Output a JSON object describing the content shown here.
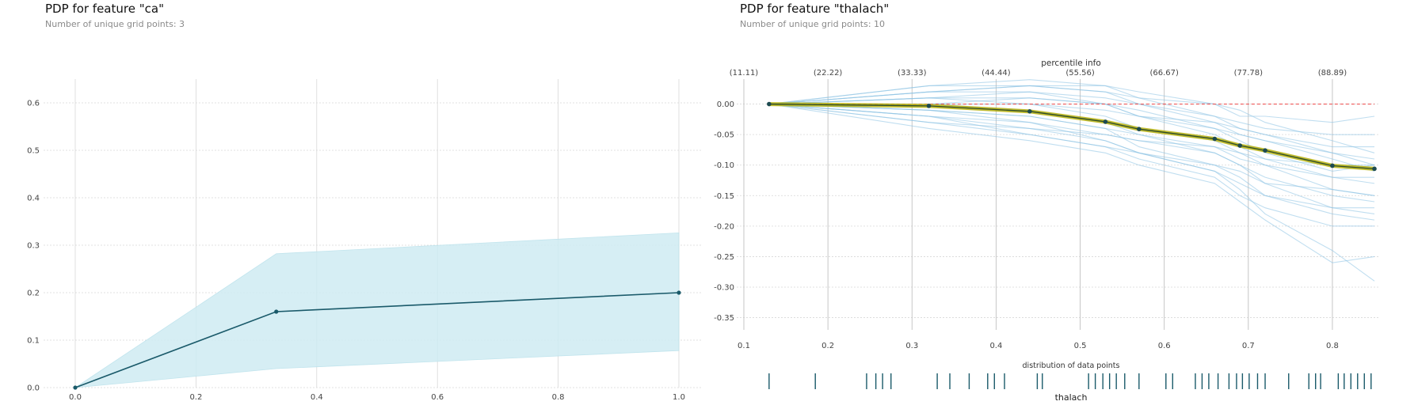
{
  "panels": {
    "left": {
      "title": "PDP for feature \"ca\"",
      "subtitle": "Number of unique grid points: 3"
    },
    "right": {
      "title": "PDP for feature \"thalach\"",
      "subtitle": "Number of unique grid points: 10"
    }
  },
  "colors": {
    "pdp_line": "#1a5a6a",
    "ci_band": "#cfecf3",
    "ice_lines": "#8cc3e3",
    "pdp_highlight": "#b5b00c",
    "baseline": "#ee4444",
    "rug": "#1a5a6a",
    "grid": "#d8d8d8"
  },
  "chart_data": [
    {
      "type": "line",
      "title": "PDP for feature \"ca\"",
      "subtitle": "Number of unique grid points: 3",
      "x": [
        0.0,
        0.333,
        1.0
      ],
      "series": [
        {
          "role": "pdp",
          "values": [
            0.0,
            0.16,
            0.2
          ]
        },
        {
          "role": "band_upper",
          "values": [
            0.0,
            0.282,
            0.326
          ]
        },
        {
          "role": "band_lower",
          "values": [
            0.0,
            0.04,
            0.078
          ]
        }
      ],
      "xlim": [
        0.0,
        1.0
      ],
      "ylim": [
        0.0,
        0.65
      ],
      "xticks": [
        "0.0",
        "0.2",
        "0.4",
        "0.6",
        "0.8",
        "1.0"
      ],
      "yticks": [
        "0.0",
        "0.1",
        "0.2",
        "0.3",
        "0.4",
        "0.5",
        "0.6"
      ],
      "grid": true
    },
    {
      "type": "line",
      "title": "PDP for feature \"thalach\"",
      "subtitle": "Number of unique grid points: 10",
      "xlabel": "thalach",
      "top_axis_label": "percentile info",
      "percentile_ticks": [
        "(11.11)",
        "(22.22)",
        "(33.33)",
        "(44.44)",
        "(55.56)",
        "(66.67)",
        "(77.78)",
        "(88.89)"
      ],
      "percentile_x": [
        0.1,
        0.2,
        0.3,
        0.4,
        0.5,
        0.6,
        0.7,
        0.8
      ],
      "x": [
        0.13,
        0.32,
        0.44,
        0.53,
        0.57,
        0.66,
        0.69,
        0.72,
        0.8,
        0.85
      ],
      "series": [
        {
          "role": "pdp",
          "values": [
            0.0,
            -0.003,
            -0.012,
            -0.029,
            -0.041,
            -0.057,
            -0.068,
            -0.076,
            -0.101,
            -0.106
          ]
        }
      ],
      "ice_lines": [
        [
          0.0,
          0.02,
          0.03,
          0.02,
          0.01,
          -0.02,
          -0.04,
          -0.05,
          -0.08,
          -0.1
        ],
        [
          0.0,
          0.03,
          0.04,
          0.03,
          0.01,
          0.0,
          -0.01,
          -0.03,
          -0.06,
          -0.08
        ],
        [
          0.0,
          0.01,
          0.02,
          0.01,
          0.0,
          -0.03,
          -0.05,
          -0.06,
          -0.09,
          -0.11
        ],
        [
          0.0,
          -0.01,
          -0.02,
          -0.04,
          -0.05,
          -0.07,
          -0.09,
          -0.1,
          -0.12,
          -0.13
        ],
        [
          0.0,
          -0.02,
          -0.03,
          -0.05,
          -0.06,
          -0.08,
          -0.1,
          -0.12,
          -0.15,
          -0.16
        ],
        [
          0.0,
          0.0,
          0.0,
          -0.01,
          -0.02,
          -0.03,
          -0.04,
          -0.05,
          -0.07,
          -0.07
        ],
        [
          0.0,
          -0.03,
          -0.05,
          -0.07,
          -0.09,
          -0.12,
          -0.15,
          -0.17,
          -0.2,
          -0.2
        ],
        [
          0.0,
          0.01,
          0.0,
          -0.02,
          -0.04,
          -0.06,
          -0.08,
          -0.1,
          -0.14,
          -0.15
        ],
        [
          0.0,
          -0.04,
          -0.06,
          -0.08,
          -0.1,
          -0.13,
          -0.16,
          -0.19,
          -0.26,
          -0.25
        ],
        [
          0.0,
          0.02,
          0.02,
          0.0,
          -0.02,
          -0.05,
          -0.07,
          -0.09,
          -0.12,
          -0.12
        ],
        [
          0.0,
          0.0,
          -0.01,
          -0.03,
          -0.05,
          -0.08,
          -0.1,
          -0.13,
          -0.17,
          -0.18
        ],
        [
          0.0,
          -0.01,
          -0.03,
          -0.06,
          -0.08,
          -0.11,
          -0.14,
          -0.18,
          -0.24,
          -0.29
        ],
        [
          0.0,
          0.03,
          0.03,
          0.02,
          0.0,
          -0.02,
          -0.03,
          -0.04,
          -0.05,
          -0.05
        ],
        [
          0.0,
          -0.02,
          -0.04,
          -0.05,
          -0.06,
          -0.07,
          -0.08,
          -0.09,
          -0.1,
          -0.1
        ],
        [
          0.0,
          0.01,
          0.01,
          0.0,
          -0.01,
          -0.04,
          -0.06,
          -0.08,
          -0.11,
          -0.1
        ],
        [
          0.0,
          -0.01,
          -0.02,
          -0.04,
          -0.07,
          -0.1,
          -0.12,
          -0.15,
          -0.18,
          -0.19
        ],
        [
          0.0,
          0.0,
          0.01,
          0.0,
          -0.02,
          -0.04,
          -0.05,
          -0.06,
          -0.08,
          -0.09
        ],
        [
          0.0,
          -0.02,
          -0.05,
          -0.07,
          -0.08,
          -0.1,
          -0.11,
          -0.13,
          -0.14,
          -0.15
        ],
        [
          0.0,
          0.02,
          0.03,
          0.03,
          0.02,
          0.0,
          -0.02,
          -0.02,
          -0.03,
          -0.02
        ],
        [
          0.0,
          -0.03,
          -0.04,
          -0.06,
          -0.08,
          -0.11,
          -0.13,
          -0.15,
          -0.17,
          -0.17
        ]
      ],
      "rug_points": [
        0.13,
        0.185,
        0.246,
        0.257,
        0.265,
        0.275,
        0.33,
        0.345,
        0.368,
        0.39,
        0.398,
        0.41,
        0.449,
        0.455,
        0.51,
        0.518,
        0.527,
        0.535,
        0.543,
        0.553,
        0.57,
        0.602,
        0.61,
        0.637,
        0.645,
        0.653,
        0.664,
        0.677,
        0.686,
        0.693,
        0.701,
        0.711,
        0.72,
        0.748,
        0.772,
        0.78,
        0.786,
        0.807,
        0.814,
        0.822,
        0.83,
        0.838,
        0.846
      ],
      "rug_label": "distribution of data points",
      "xlim": [
        0.1,
        0.85
      ],
      "ylim": [
        -0.37,
        0.05
      ],
      "xticks": [
        "0.1",
        "0.2",
        "0.3",
        "0.4",
        "0.5",
        "0.6",
        "0.7",
        "0.8"
      ],
      "yticks": [
        "0.00",
        "-0.05",
        "-0.10",
        "-0.15",
        "-0.20",
        "-0.25",
        "-0.30",
        "-0.35"
      ],
      "baseline": 0.0,
      "grid": true
    }
  ]
}
